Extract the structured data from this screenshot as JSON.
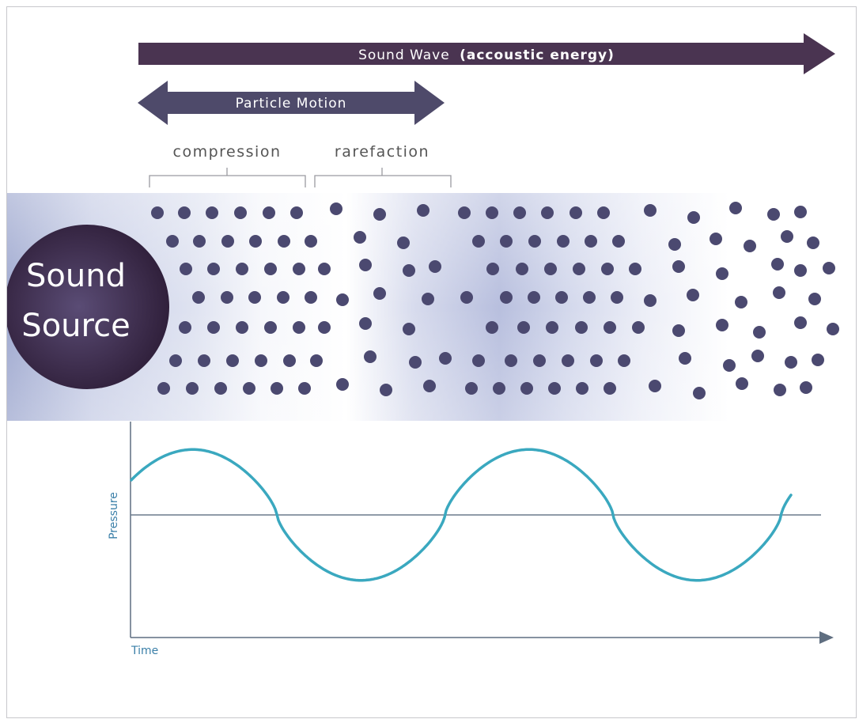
{
  "wave_arrow": {
    "label": "Sound Wave",
    "label_bold": "(accoustic energy)"
  },
  "particle_arrow": {
    "label": "Particle Motion"
  },
  "regions": {
    "compression": "compression",
    "rarefaction": "rarefaction"
  },
  "source": {
    "line1": "Sound",
    "line2": "Source"
  },
  "graph": {
    "ylabel": "Pressure",
    "xlabel": "Time"
  },
  "colors": {
    "wave_arrow": "#4a3451",
    "particle_arrow": "#4e4a6a",
    "particle": "#4b4970",
    "source": "#3c2a48",
    "curve": "#3aa8bf",
    "axis": "#5f6e80",
    "label_text": "#555555"
  }
}
